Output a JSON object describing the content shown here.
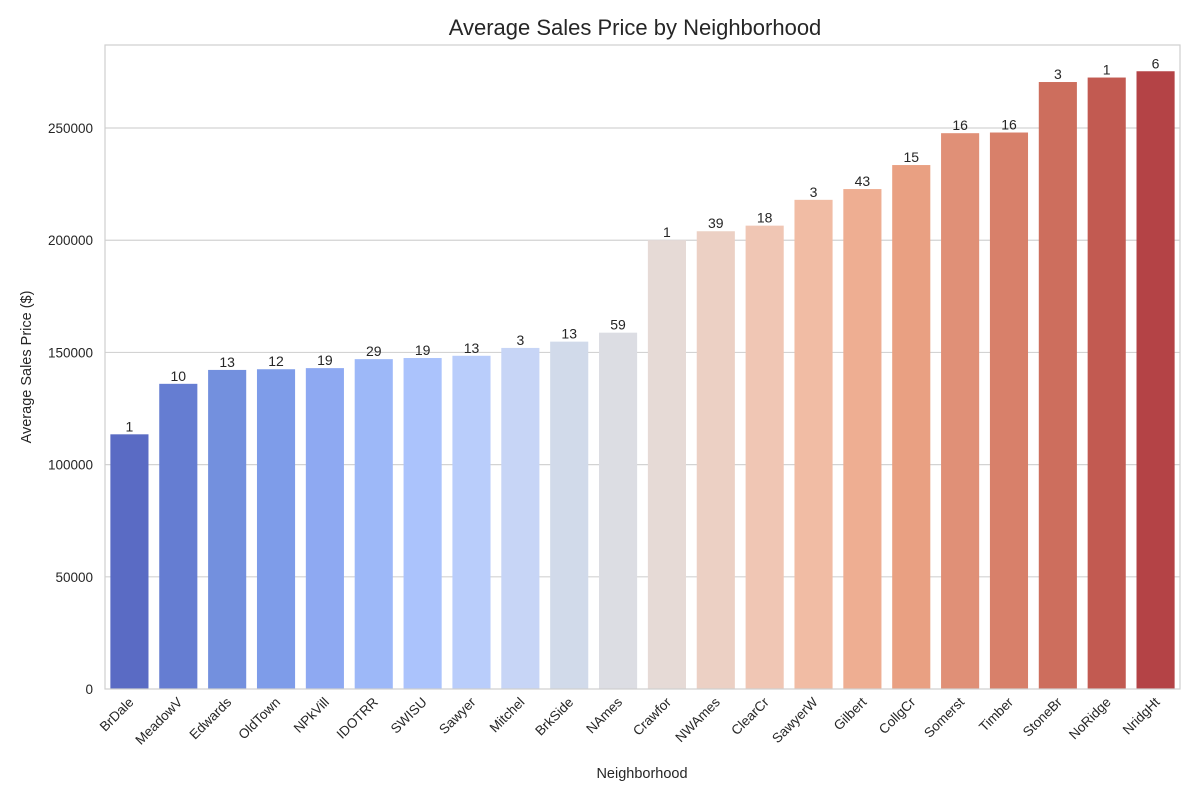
{
  "chart_data": {
    "type": "bar",
    "title": "Average Sales Price by Neighborhood",
    "xlabel": "Neighborhood",
    "ylabel": "Average Sales Price ($)",
    "ylim": [
      0,
      287000
    ],
    "yticks": [
      0,
      50000,
      100000,
      150000,
      200000,
      250000
    ],
    "grid": "horizontal",
    "categories": [
      "BrDale",
      "MeadowV",
      "Edwards",
      "OldTown",
      "NPkVill",
      "IDOTRR",
      "SWISU",
      "Sawyer",
      "Mitchel",
      "BrkSide",
      "NAmes",
      "Crawfor",
      "NWAmes",
      "ClearCr",
      "SawyerW",
      "Gilbert",
      "CollgCr",
      "Somerst",
      "Timber",
      "StoneBr",
      "NoRidge",
      "NridgHt"
    ],
    "values": [
      113500,
      136000,
      142200,
      142500,
      143000,
      147000,
      147500,
      148500,
      152000,
      154800,
      158800,
      200000,
      204000,
      206500,
      218000,
      222800,
      233500,
      247700,
      248000,
      270500,
      272500,
      275300
    ],
    "counts": [
      1,
      10,
      13,
      12,
      19,
      29,
      19,
      13,
      3,
      13,
      59,
      1,
      39,
      18,
      3,
      43,
      15,
      16,
      16,
      3,
      1,
      6
    ],
    "colors": [
      "#5a6bc4",
      "#657dd2",
      "#7390de",
      "#7e9ce9",
      "#8ea9f2",
      "#9db8f8",
      "#abc3fc",
      "#b9cdfb",
      "#c7d5f6",
      "#d1daea",
      "#dcdde3",
      "#e6dad6",
      "#ecd0c4",
      "#f0c6b4",
      "#f1bca4",
      "#eeae92",
      "#e9a082",
      "#e09077",
      "#d8806a",
      "#cd6e5d",
      "#c25a51",
      "#b44346"
    ]
  }
}
